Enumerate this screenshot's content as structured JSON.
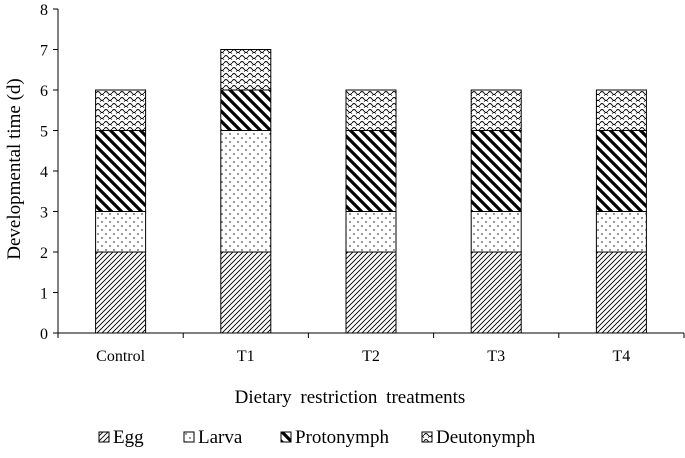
{
  "chart_data": {
    "type": "bar",
    "stacked": true,
    "title": "",
    "xlabel": "Dietary restriction treatments",
    "ylabel": "Developmental time (d)",
    "ylim": [
      0,
      8
    ],
    "yticks": [
      0,
      1,
      2,
      3,
      4,
      5,
      6,
      7,
      8
    ],
    "grid": false,
    "legend_position": "bottom",
    "categories": [
      "Control",
      "T1",
      "T2",
      "T3",
      "T4"
    ],
    "series": [
      {
        "name": "Egg",
        "pattern": "diagonal-hatch-thin",
        "values": [
          2,
          2,
          2,
          2,
          2
        ]
      },
      {
        "name": "Larva",
        "pattern": "dots",
        "values": [
          1,
          3,
          1,
          1,
          1
        ]
      },
      {
        "name": "Protonymph",
        "pattern": "diagonal-hatch-bold",
        "values": [
          2,
          1,
          2,
          2,
          2
        ]
      },
      {
        "name": "Deutonymph",
        "pattern": "waves",
        "values": [
          1,
          1,
          1,
          1,
          1
        ]
      }
    ]
  }
}
